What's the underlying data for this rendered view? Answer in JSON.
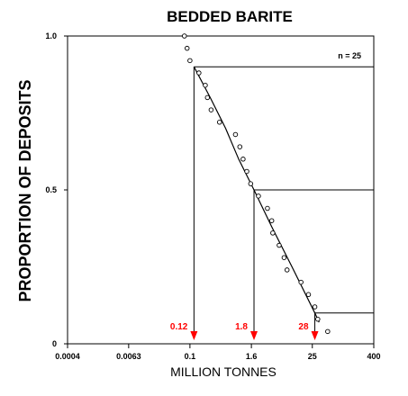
{
  "chart_data": {
    "type": "scatter",
    "title": "BEDDED BARITE",
    "xlabel": "MILLION TONNES",
    "ylabel": "PROPORTION OF DEPOSITS",
    "x_scale": "log",
    "x_ticks": [
      "0.0004",
      "0.0063",
      "0.1",
      "1.6",
      "25",
      "400"
    ],
    "y_ticks": [
      "0",
      "0.5",
      "1.0"
    ],
    "ylim": [
      0,
      1
    ],
    "annotation": "n = 25",
    "observed_points": [
      {
        "x": 0.078,
        "y": 1.0
      },
      {
        "x": 0.088,
        "y": 0.96
      },
      {
        "x": 0.1,
        "y": 0.92
      },
      {
        "x": 0.15,
        "y": 0.88
      },
      {
        "x": 0.2,
        "y": 0.84
      },
      {
        "x": 0.22,
        "y": 0.8
      },
      {
        "x": 0.26,
        "y": 0.76
      },
      {
        "x": 0.38,
        "y": 0.72
      },
      {
        "x": 0.78,
        "y": 0.68
      },
      {
        "x": 0.95,
        "y": 0.64
      },
      {
        "x": 1.1,
        "y": 0.6
      },
      {
        "x": 1.3,
        "y": 0.56
      },
      {
        "x": 1.55,
        "y": 0.52
      },
      {
        "x": 2.2,
        "y": 0.48
      },
      {
        "x": 3.3,
        "y": 0.44
      },
      {
        "x": 4.0,
        "y": 0.4
      },
      {
        "x": 4.2,
        "y": 0.36
      },
      {
        "x": 5.6,
        "y": 0.32
      },
      {
        "x": 7.0,
        "y": 0.28
      },
      {
        "x": 8.0,
        "y": 0.24
      },
      {
        "x": 15.0,
        "y": 0.2
      },
      {
        "x": 21.0,
        "y": 0.16
      },
      {
        "x": 28.0,
        "y": 0.12
      },
      {
        "x": 32.0,
        "y": 0.08
      },
      {
        "x": 50.0,
        "y": 0.04
      }
    ],
    "fitted_curve": [
      {
        "x": 0.12,
        "y": 0.9
      },
      {
        "x": 0.25,
        "y": 0.8
      },
      {
        "x": 0.5,
        "y": 0.7
      },
      {
        "x": 0.9,
        "y": 0.6
      },
      {
        "x": 1.8,
        "y": 0.5
      },
      {
        "x": 4.0,
        "y": 0.38
      },
      {
        "x": 10.0,
        "y": 0.25
      },
      {
        "x": 28.0,
        "y": 0.1
      },
      {
        "x": 34.0,
        "y": 0.07
      }
    ],
    "percentile_markers": [
      {
        "label": "0.12",
        "x": 0.12,
        "y": 0.9
      },
      {
        "label": "1.8",
        "x": 1.8,
        "y": 0.5
      },
      {
        "label": "28",
        "x": 28.0,
        "y": 0.1
      }
    ],
    "colors": {
      "marker_arrow": "#ff0000",
      "marker_label": "#ff0000",
      "axes": "#000000"
    }
  }
}
